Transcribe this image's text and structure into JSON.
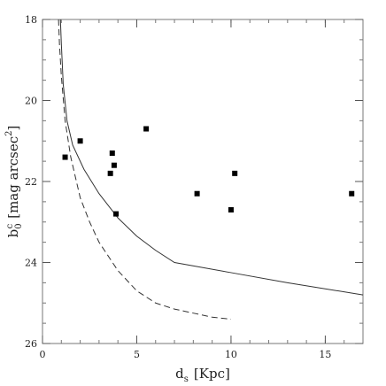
{
  "chart_data": {
    "type": "scatter",
    "xlabel": "d",
    "xlabel_sub": "s",
    "xlabel_unit": "[Kpc]",
    "ylabel": "b",
    "ylabel_sub": "0",
    "ylabel_sup": "c",
    "ylabel_unit": "[mag arcsec",
    "ylabel_unit_sup": "2",
    "ylabel_unit_close": "]",
    "xlim": [
      0,
      17
    ],
    "ylim": [
      26,
      18
    ],
    "y_inverted": true,
    "grid": false,
    "x_ticks": [
      {
        "value": 0,
        "label": "0"
      },
      {
        "value": 5,
        "label": "5"
      },
      {
        "value": 10,
        "label": "10"
      },
      {
        "value": 15,
        "label": "15"
      }
    ],
    "y_ticks": [
      {
        "value": 18,
        "label": "18"
      },
      {
        "value": 20,
        "label": "20"
      },
      {
        "value": 22,
        "label": "22"
      },
      {
        "value": 24,
        "label": "24"
      },
      {
        "value": 26,
        "label": "26"
      }
    ],
    "x_minor_step": 1,
    "y_minor_step": 0.5,
    "series": [
      {
        "style": "points",
        "marker": "square",
        "color": "#000000",
        "x": [
          1.2,
          2.0,
          3.6,
          3.7,
          3.8,
          3.9,
          5.5,
          8.2,
          10.0,
          10.2,
          16.4
        ],
        "y": [
          21.4,
          21.0,
          21.8,
          21.3,
          21.6,
          22.8,
          20.7,
          22.3,
          22.7,
          21.8,
          22.3
        ]
      },
      {
        "style": "solid",
        "color": "#333333",
        "x": [
          0.95,
          1.0,
          1.1,
          1.3,
          1.6,
          2.2,
          3.0,
          4.0,
          5.0,
          6.0,
          7.0,
          10.0,
          13.0,
          17.0
        ],
        "y": [
          18.0,
          18.6,
          19.6,
          20.5,
          21.1,
          21.7,
          22.3,
          22.9,
          23.35,
          23.7,
          24.0,
          24.25,
          24.5,
          24.8
        ]
      },
      {
        "style": "dashed",
        "color": "#333333",
        "x": [
          0.85,
          0.9,
          1.0,
          1.2,
          1.5,
          2.0,
          2.5,
          3.0,
          4.0,
          5.0,
          6.0,
          7.0,
          8.0,
          9.0,
          10.0
        ],
        "y": [
          18.0,
          18.6,
          19.4,
          20.5,
          21.4,
          22.4,
          23.0,
          23.5,
          24.2,
          24.7,
          25.0,
          25.15,
          25.25,
          25.35,
          25.4
        ]
      }
    ]
  }
}
